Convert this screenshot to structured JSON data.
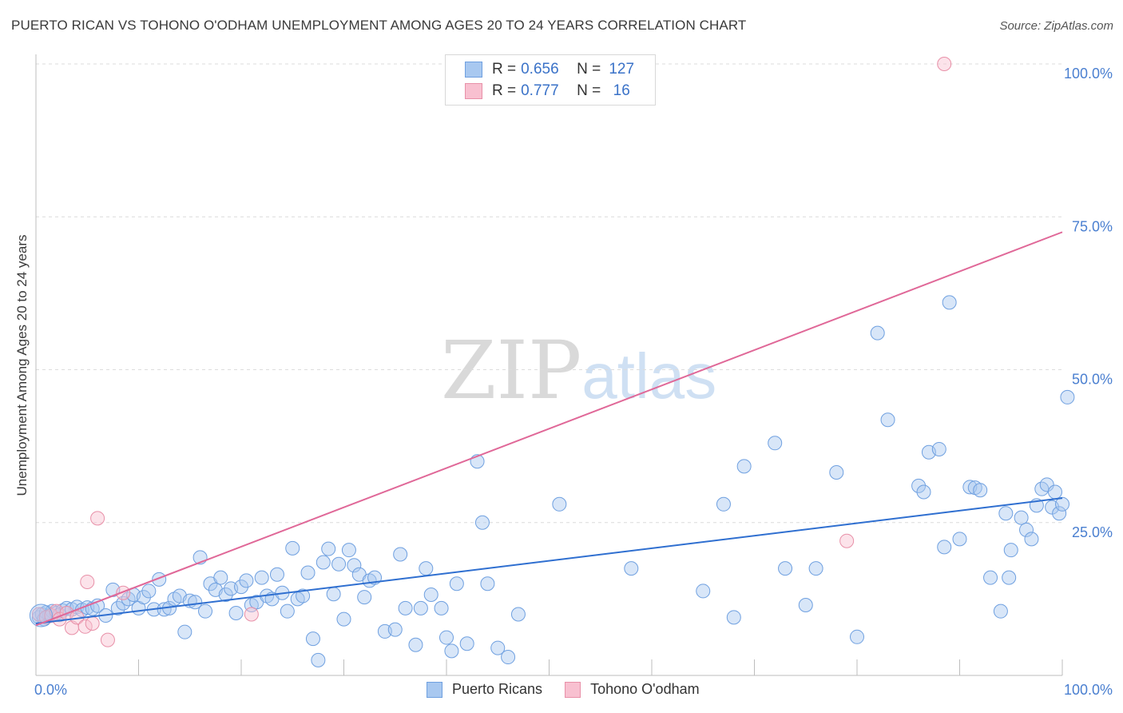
{
  "header": {
    "title": "PUERTO RICAN VS TOHONO O'ODHAM UNEMPLOYMENT AMONG AGES 20 TO 24 YEARS CORRELATION CHART",
    "source": "Source: ZipAtlas.com"
  },
  "watermark": {
    "zip": "ZIP",
    "atlas": "atlas"
  },
  "legend": {
    "rows": [
      {
        "r_label": "R =",
        "r_value": "0.656",
        "n_label": "N =",
        "n_value": "127",
        "color": "#a8c8f0",
        "border": "#6fa0e0"
      },
      {
        "r_label": "R =",
        "r_value": "0.777",
        "n_label": "N =",
        "n_value": "16",
        "color": "#f8c0d0",
        "border": "#e890a8"
      }
    ]
  },
  "bottom_legend": [
    {
      "label": "Puerto Ricans",
      "color": "#a8c8f0",
      "border": "#6fa0e0"
    },
    {
      "label": "Tohono O'odham",
      "color": "#f8c0d0",
      "border": "#e890a8"
    }
  ],
  "chart_data": {
    "type": "scatter",
    "title": "PUERTO RICAN VS TOHONO O'ODHAM UNEMPLOYMENT AMONG AGES 20 TO 24 YEARS CORRELATION CHART",
    "xlabel": "",
    "ylabel": "Unemployment Among Ages 20 to 24 years",
    "xlim": [
      0,
      100
    ],
    "ylim": [
      0,
      100
    ],
    "x_tick_labels": [
      "0.0%",
      "100.0%"
    ],
    "y_tick_labels": [
      "25.0%",
      "50.0%",
      "75.0%",
      "100.0%"
    ],
    "y_ticks": [
      25,
      50,
      75,
      100
    ],
    "grid": true,
    "series": [
      {
        "name": "Puerto Ricans",
        "color": "#6fa0e0",
        "fill": "rgba(168,200,240,0.45)",
        "trend": {
          "x": [
            0,
            100
          ],
          "y": [
            8.5,
            29.0
          ],
          "color": "#2f6fd0"
        },
        "points": [
          [
            0.3,
            9.5
          ],
          [
            0.6,
            10
          ],
          [
            0.8,
            9.2
          ],
          [
            1,
            10.3
          ],
          [
            1.3,
            9.8
          ],
          [
            1.6,
            10.5
          ],
          [
            2,
            10.2
          ],
          [
            2.3,
            9.9
          ],
          [
            2.6,
            10.6
          ],
          [
            3,
            11
          ],
          [
            3.5,
            10.8
          ],
          [
            4,
            11.2
          ],
          [
            4.5,
            10.7
          ],
          [
            5,
            11.1
          ],
          [
            5.5,
            10.9
          ],
          [
            6,
            11.4
          ],
          [
            6.8,
            9.8
          ],
          [
            7.5,
            14
          ],
          [
            8,
            11
          ],
          [
            8.5,
            11.8
          ],
          [
            9,
            12.5
          ],
          [
            9.5,
            13.2
          ],
          [
            10,
            11
          ],
          [
            10.5,
            12.8
          ],
          [
            11,
            13.8
          ],
          [
            11.5,
            10.8
          ],
          [
            12,
            15.7
          ],
          [
            12.5,
            10.8
          ],
          [
            13,
            11
          ],
          [
            13.5,
            12.5
          ],
          [
            14,
            13
          ],
          [
            14.5,
            7.1
          ],
          [
            15,
            12.2
          ],
          [
            15.5,
            12
          ],
          [
            16,
            19.3
          ],
          [
            16.5,
            10.5
          ],
          [
            17,
            15
          ],
          [
            17.5,
            14
          ],
          [
            18,
            16
          ],
          [
            18.5,
            13.2
          ],
          [
            19,
            14.2
          ],
          [
            19.5,
            10.2
          ],
          [
            20,
            14.5
          ],
          [
            20.5,
            15.5
          ],
          [
            21,
            11.5
          ],
          [
            21.5,
            12
          ],
          [
            22,
            16
          ],
          [
            22.5,
            13
          ],
          [
            23,
            12.5
          ],
          [
            23.5,
            16.5
          ],
          [
            24,
            13.5
          ],
          [
            24.5,
            10.5
          ],
          [
            25,
            20.8
          ],
          [
            25.5,
            12.5
          ],
          [
            26,
            13
          ],
          [
            26.5,
            16.8
          ],
          [
            27,
            6
          ],
          [
            27.5,
            2.5
          ],
          [
            28,
            18.5
          ],
          [
            28.5,
            20.7
          ],
          [
            29,
            13.3
          ],
          [
            29.5,
            18.2
          ],
          [
            30,
            9.2
          ],
          [
            30.5,
            20.5
          ],
          [
            31,
            18
          ],
          [
            31.5,
            16.5
          ],
          [
            32,
            12.8
          ],
          [
            32.5,
            15.5
          ],
          [
            33,
            16
          ],
          [
            34,
            7.2
          ],
          [
            35,
            7.5
          ],
          [
            35.5,
            19.8
          ],
          [
            36,
            11
          ],
          [
            37,
            5
          ],
          [
            37.5,
            11
          ],
          [
            38,
            17.5
          ],
          [
            38.5,
            13.2
          ],
          [
            39.5,
            11
          ],
          [
            40,
            6.2
          ],
          [
            40.5,
            4
          ],
          [
            41,
            15
          ],
          [
            42,
            5.2
          ],
          [
            43,
            35
          ],
          [
            43.5,
            25
          ],
          [
            44,
            15
          ],
          [
            45,
            4.5
          ],
          [
            46,
            3
          ],
          [
            47,
            10
          ],
          [
            51,
            28
          ],
          [
            58,
            17.5
          ],
          [
            65,
            13.8
          ],
          [
            67,
            28
          ],
          [
            68,
            9.5
          ],
          [
            69,
            34.2
          ],
          [
            72,
            38
          ],
          [
            73,
            17.5
          ],
          [
            75,
            11.5
          ],
          [
            76,
            17.5
          ],
          [
            78,
            33.2
          ],
          [
            80,
            6.3
          ],
          [
            82,
            56
          ],
          [
            83,
            41.8
          ],
          [
            86,
            31
          ],
          [
            86.5,
            30
          ],
          [
            87,
            36.5
          ],
          [
            88,
            37
          ],
          [
            88.5,
            21
          ],
          [
            89,
            61
          ],
          [
            90,
            22.3
          ],
          [
            91,
            30.8
          ],
          [
            91.5,
            30.7
          ],
          [
            92,
            30.3
          ],
          [
            93,
            16
          ],
          [
            94,
            10.5
          ],
          [
            94.5,
            26.5
          ],
          [
            94.8,
            16
          ],
          [
            95,
            20.5
          ],
          [
            96,
            25.8
          ],
          [
            96.5,
            23.8
          ],
          [
            97,
            22.3
          ],
          [
            97.5,
            27.8
          ],
          [
            98,
            30.5
          ],
          [
            98.5,
            31.2
          ],
          [
            99,
            27.5
          ],
          [
            99.3,
            30
          ],
          [
            99.7,
            26.5
          ],
          [
            100,
            28
          ],
          [
            100.5,
            45.5
          ]
        ]
      },
      {
        "name": "Tohono O'odham",
        "color": "#e890a8",
        "fill": "rgba(248,192,208,0.45)",
        "trend": {
          "x": [
            0,
            100
          ],
          "y": [
            8.2,
            72.5
          ],
          "color": "#e06898"
        },
        "points": [
          [
            0.3,
            10
          ],
          [
            1,
            9.5
          ],
          [
            1.5,
            9.8
          ],
          [
            2,
            10.5
          ],
          [
            2.3,
            9.2
          ],
          [
            3,
            10.2
          ],
          [
            3.5,
            7.8
          ],
          [
            4,
            9.5
          ],
          [
            4.8,
            8
          ],
          [
            5,
            15.3
          ],
          [
            5.5,
            8.5
          ],
          [
            6,
            25.7
          ],
          [
            7,
            5.8
          ],
          [
            8.5,
            13.5
          ],
          [
            21,
            10
          ],
          [
            79,
            22
          ],
          [
            88.5,
            100
          ]
        ]
      }
    ]
  }
}
